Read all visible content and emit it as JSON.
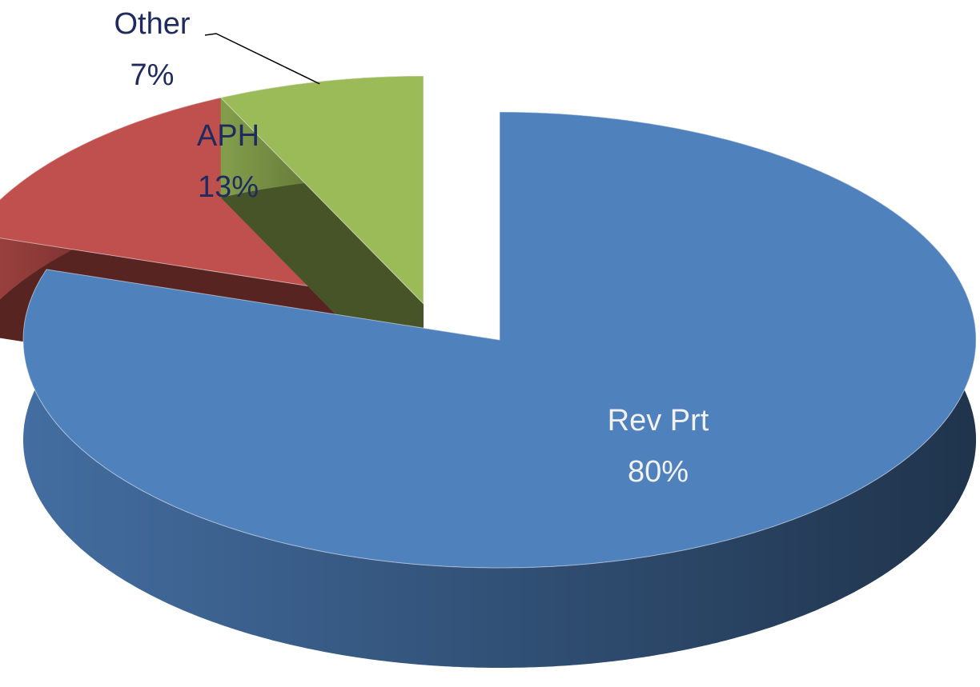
{
  "chart_data": {
    "type": "pie",
    "categories": [
      "Rev Prt",
      "APH",
      "Other"
    ],
    "values": [
      80,
      13,
      7
    ],
    "value_labels": [
      "80%",
      "13%",
      "7%"
    ],
    "colors": [
      "#4f81bd",
      "#c0504d",
      "#9bbb59"
    ]
  }
}
